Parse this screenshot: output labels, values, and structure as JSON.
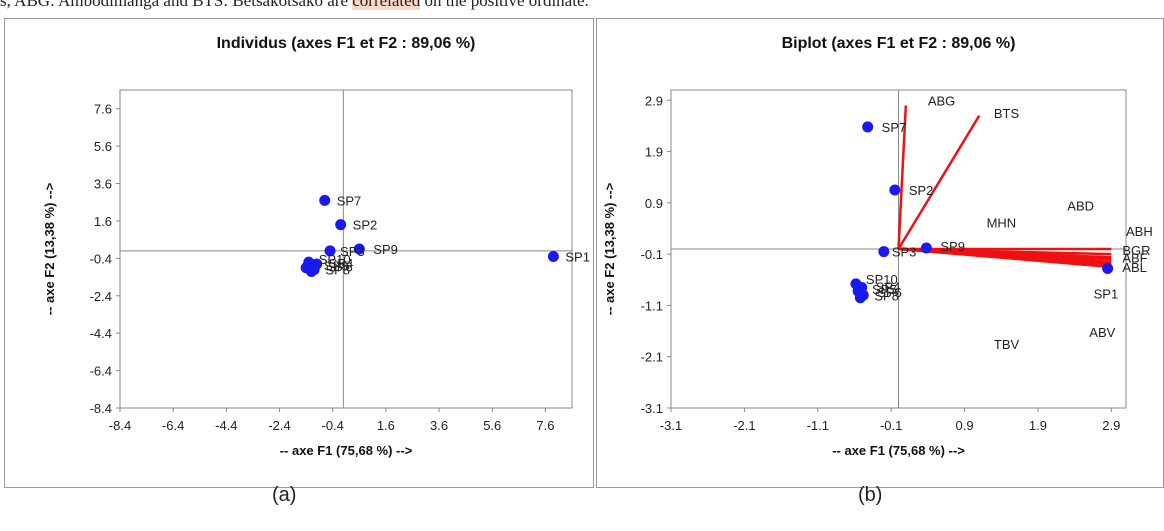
{
  "caption": {
    "text_before": "s, ABG: Ambodimanga and BTS: Betsakotsako are ",
    "text_highlight": "correlated",
    "text_after": " on the positive ordinate."
  },
  "subcaptions": [
    "(a)",
    "(b)"
  ],
  "chart_data": [
    {
      "type": "scatter",
      "title": "Individus (axes F1 et F2 : 89,06 %)",
      "xlabel": "-- axe F1 (75,68 %) -->",
      "ylabel": "-- axe F2 (13,38 %) -->",
      "xlim": [
        -8.4,
        8.6
      ],
      "ylim": [
        -8.4,
        8.6
      ],
      "xticks": [
        "-8.4",
        "-6.4",
        "-4.4",
        "-2.4",
        "-0.4",
        "1.6",
        "3.6",
        "5.6",
        "7.6"
      ],
      "yticks": [
        "7.6",
        "5.6",
        "3.6",
        "1.6",
        "-0.4",
        "-2.4",
        "-4.4",
        "-6.4",
        "-8.4"
      ],
      "point_color": "#1a1aee",
      "points": [
        {
          "label": "SP1",
          "x": 7.9,
          "y": -0.3
        },
        {
          "label": "SP7",
          "x": -0.7,
          "y": 2.7
        },
        {
          "label": "SP2",
          "x": -0.1,
          "y": 1.4
        },
        {
          "label": "SP9",
          "x": 0.6,
          "y": 0.1
        },
        {
          "label": "SP3",
          "x": -0.5,
          "y": 0.0
        },
        {
          "label": "SP10",
          "x": -1.3,
          "y": -0.6
        },
        {
          "label": "SP4",
          "x": -1.0,
          "y": -0.7
        },
        {
          "label": "SP5",
          "x": -1.4,
          "y": -0.9
        },
        {
          "label": "SP6",
          "x": -1.1,
          "y": -1.0
        },
        {
          "label": "SP8",
          "x": -1.2,
          "y": -1.1
        }
      ]
    },
    {
      "type": "scatter",
      "title": "Biplot (axes F1 et F2 : 89,06 %)",
      "xlabel": "-- axe F1 (75,68 %) -->",
      "ylabel": "-- axe F2 (13,38 %) -->",
      "xlim": [
        -3.1,
        3.1
      ],
      "ylim": [
        -3.1,
        3.1
      ],
      "xticks": [
        "-3.1",
        "-2.1",
        "-1.1",
        "-0.1",
        "0.9",
        "1.9",
        "2.9"
      ],
      "yticks": [
        "2.9",
        "1.9",
        "0.9",
        "-0.1",
        "-1.1",
        "-2.1",
        "-3.1"
      ],
      "point_color": "#1a1aee",
      "vector_color": "#ee1111",
      "points": [
        {
          "label": "SP1",
          "x": 2.85,
          "y": -0.38
        },
        {
          "label": "SP7",
          "x": -0.42,
          "y": 2.38
        },
        {
          "label": "SP2",
          "x": -0.05,
          "y": 1.15
        },
        {
          "label": "SP9",
          "x": 0.38,
          "y": 0.02
        },
        {
          "label": "SP3",
          "x": -0.2,
          "y": -0.05
        },
        {
          "label": "SP10",
          "x": -0.58,
          "y": -0.68
        },
        {
          "label": "SP4",
          "x": -0.5,
          "y": -0.75
        },
        {
          "label": "SP5",
          "x": -0.55,
          "y": -0.82
        },
        {
          "label": "SP6",
          "x": -0.48,
          "y": -0.9
        },
        {
          "label": "SP8",
          "x": -0.52,
          "y": -0.95
        }
      ],
      "vectors": [
        {
          "label": "ABG",
          "x": 0.1,
          "y": 2.8
        },
        {
          "label": "BTS",
          "x": 1.1,
          "y": 2.6
        },
        {
          "label": "ABD",
          "x": 2.9,
          "y": 0.0
        },
        {
          "label": "ABH",
          "x": 2.9,
          "y": -0.1
        },
        {
          "label": "BGR",
          "x": 2.9,
          "y": -0.16
        },
        {
          "label": "ABF",
          "x": 2.9,
          "y": -0.2
        },
        {
          "label": "ABL",
          "x": 2.9,
          "y": -0.35
        },
        {
          "label": "MHN",
          "x": 2.9,
          "y": -0.25
        },
        {
          "label": "ABV",
          "x": 2.9,
          "y": -0.28
        },
        {
          "label": "TBV",
          "x": 2.9,
          "y": -0.3
        }
      ],
      "vector_labels_text": [
        "ABG",
        "BTS",
        "ABD",
        "ABH",
        "MHN",
        "BGR",
        "ABF",
        "ABL",
        "SP1",
        "ABV",
        "TBV"
      ]
    }
  ]
}
